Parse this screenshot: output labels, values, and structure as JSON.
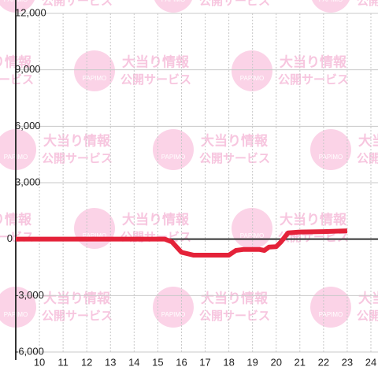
{
  "chart_data": {
    "type": "line",
    "watermark": {
      "line1": "大当り情報",
      "line2": "公開サービス",
      "logo": "PAPIMO"
    },
    "x": [
      9,
      15.3,
      15.6,
      16,
      16.5,
      17,
      17.5,
      18,
      18.3,
      18.6,
      19,
      19.3,
      19.5,
      19.7,
      20,
      20.2,
      20.5,
      21,
      22,
      23
    ],
    "series": [
      {
        "color": "#e42239",
        "values": [
          0,
          0,
          -150,
          -700,
          -850,
          -850,
          -850,
          -850,
          -600,
          -550,
          -550,
          -550,
          -600,
          -420,
          -400,
          -150,
          330,
          380,
          400,
          440
        ]
      }
    ],
    "xlim": [
      9,
      24.3
    ],
    "xticks": [
      10,
      11,
      12,
      13,
      14,
      15,
      16,
      17,
      18,
      19,
      20,
      21,
      22,
      23,
      24
    ],
    "ylim": [
      -6000,
      12000
    ],
    "yticks": [
      {
        "value": -6000,
        "label": "-6,000"
      },
      {
        "value": -3000,
        "label": "-3,000"
      },
      0,
      {
        "value": 3000,
        "label": "3,000"
      },
      {
        "value": 6000,
        "label": "6,000"
      },
      {
        "value": 9000,
        "label": "9,000"
      },
      {
        "value": 12000,
        "label": "12,000"
      }
    ],
    "grid": true
  }
}
